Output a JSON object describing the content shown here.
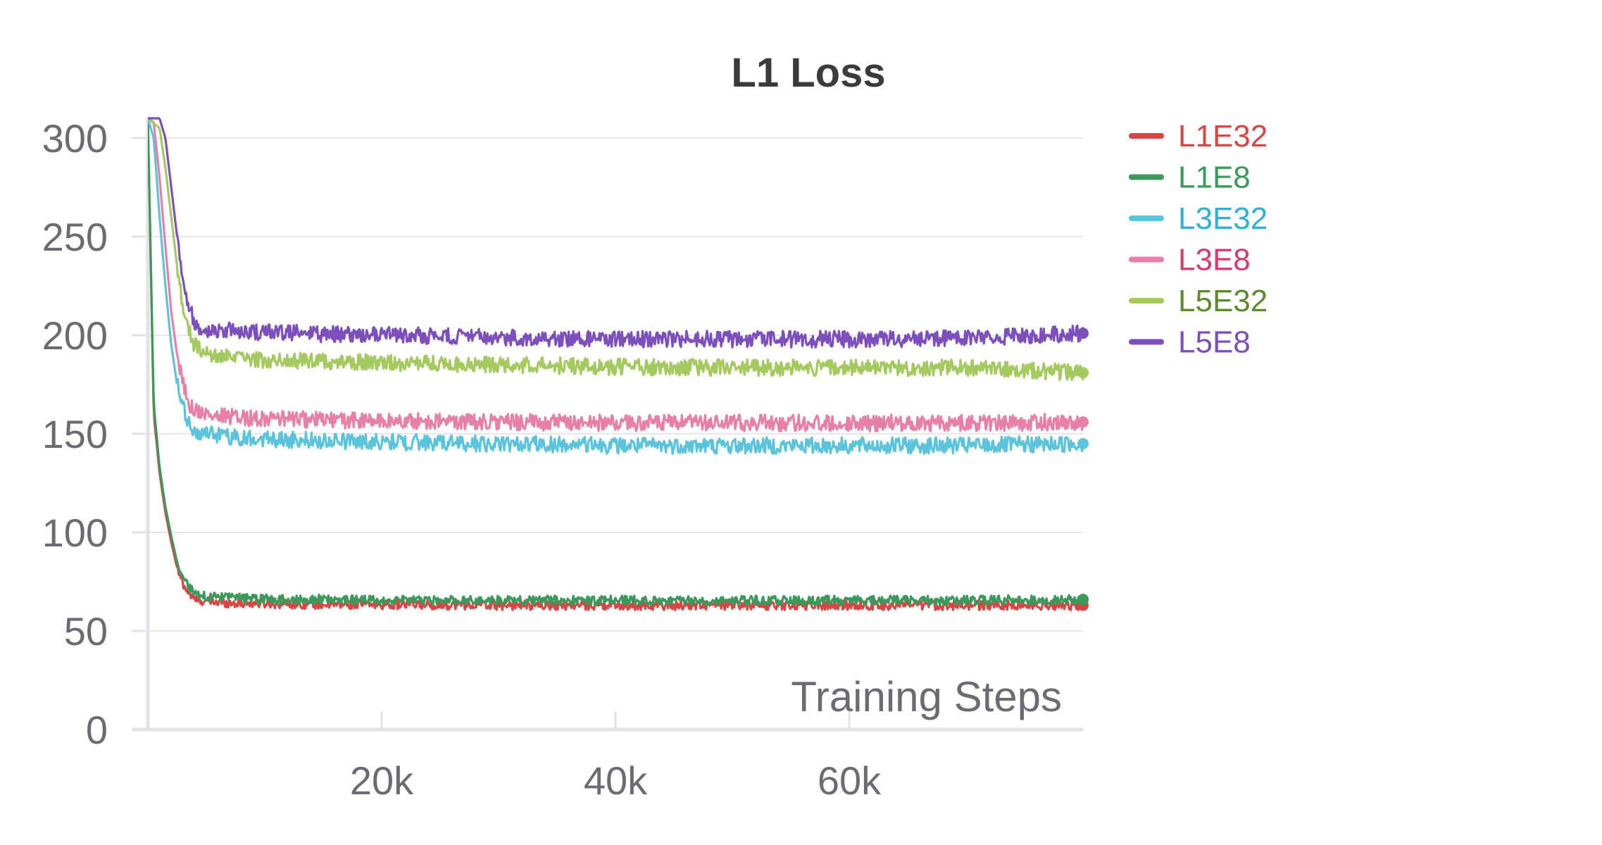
{
  "chart_data": {
    "type": "line",
    "title": "L1 Loss",
    "xlabel": "Training Steps",
    "ylabel": "",
    "xlim": [
      0,
      80000
    ],
    "ylim": [
      0,
      310
    ],
    "x_ticks": [
      20000,
      40000,
      60000
    ],
    "x_tick_labels": [
      "20k",
      "40k",
      "60k"
    ],
    "y_ticks": [
      0,
      50,
      100,
      150,
      200,
      250,
      300
    ],
    "y_tick_labels": [
      "0",
      "50",
      "100",
      "150",
      "200",
      "250",
      "300"
    ],
    "grid": true,
    "legend_position": "right",
    "series": [
      {
        "name": "L1E32",
        "color": "#d94545",
        "label_color": "#d94545",
        "x": [
          0,
          500,
          1000,
          1500,
          2000,
          2500,
          3000,
          3500,
          4000,
          5000,
          6000,
          8000,
          10000,
          15000,
          20000,
          30000,
          40000,
          50000,
          60000,
          70000,
          80000
        ],
        "values": [
          310,
          160,
          130,
          110,
          95,
          82,
          74,
          69,
          66,
          65,
          64.5,
          64,
          64,
          63.5,
          63.5,
          63,
          63,
          63,
          63,
          63,
          63
        ]
      },
      {
        "name": "L1E8",
        "color": "#3a9a5c",
        "label_color": "#3a9a5c",
        "x": [
          0,
          500,
          1000,
          1500,
          2000,
          2500,
          3000,
          3500,
          4000,
          5000,
          6000,
          8000,
          10000,
          15000,
          20000,
          30000,
          40000,
          50000,
          60000,
          70000,
          80000
        ],
        "values": [
          310,
          165,
          133,
          113,
          98,
          85,
          77,
          72,
          69,
          67.5,
          67,
          66.5,
          66,
          66,
          65.5,
          65.5,
          65.5,
          65.5,
          65.5,
          65.5,
          66
        ]
      },
      {
        "name": "L3E32",
        "color": "#5bc4dc",
        "label_color": "#2fb0d6",
        "x": [
          0,
          500,
          1000,
          1500,
          2000,
          2500,
          3000,
          3500,
          4000,
          5000,
          6000,
          8000,
          10000,
          15000,
          20000,
          30000,
          40000,
          50000,
          60000,
          70000,
          80000
        ],
        "values": [
          310,
          300,
          260,
          225,
          195,
          175,
          163,
          155,
          151,
          150,
          149,
          148,
          147.5,
          146.5,
          146,
          145,
          144,
          144,
          144,
          144,
          145
        ]
      },
      {
        "name": "L3E8",
        "color": "#e87fa6",
        "label_color": "#d9396f",
        "x": [
          0,
          500,
          1000,
          1500,
          2000,
          2500,
          3000,
          3500,
          4000,
          5000,
          6000,
          8000,
          10000,
          15000,
          20000,
          30000,
          40000,
          50000,
          60000,
          70000,
          80000
        ],
        "values": [
          310,
          308,
          280,
          245,
          212,
          190,
          175,
          166,
          162,
          160,
          159,
          158,
          158,
          157,
          156.5,
          156,
          155.5,
          155.5,
          155.5,
          155.5,
          156
        ]
      },
      {
        "name": "L5E32",
        "color": "#a3c95f",
        "label_color": "#5e8a2e",
        "x": [
          0,
          1000,
          1500,
          2000,
          2500,
          3000,
          3500,
          4000,
          4500,
          5000,
          6000,
          8000,
          10000,
          15000,
          20000,
          30000,
          40000,
          50000,
          60000,
          70000,
          80000
        ],
        "values": [
          310,
          305,
          285,
          260,
          235,
          215,
          202,
          195,
          192,
          190,
          189,
          188,
          187.5,
          187,
          186,
          185,
          184,
          183.5,
          183.5,
          183.5,
          181
        ]
      },
      {
        "name": "L5E8",
        "color": "#7c4fbd",
        "label_color": "#7c4fbd",
        "x": [
          0,
          1000,
          1500,
          2000,
          2500,
          3000,
          3500,
          4000,
          4500,
          5000,
          6000,
          8000,
          10000,
          15000,
          20000,
          30000,
          40000,
          50000,
          60000,
          70000,
          80000
        ],
        "values": [
          310,
          310,
          300,
          275,
          250,
          230,
          215,
          207,
          204,
          203,
          202.5,
          202,
          201.5,
          200.5,
          200,
          199,
          198,
          198,
          198,
          198.5,
          201
        ]
      }
    ]
  }
}
